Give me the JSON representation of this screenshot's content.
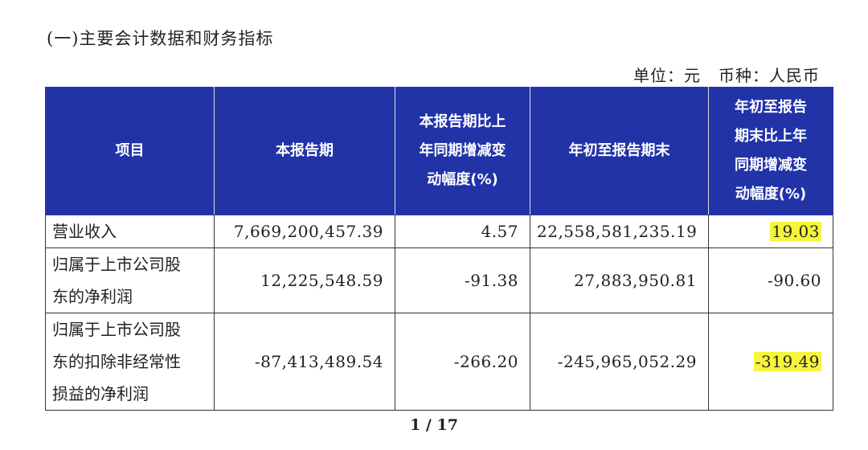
{
  "section_title": "(一)主要会计数据和财务指标",
  "unit_label": "单位：元",
  "currency_label": "币种：人民币",
  "table": {
    "header_bg": "#2233a8",
    "highlight_color": "#f5f53a",
    "headers": [
      [
        "项目"
      ],
      [
        "本报告期"
      ],
      [
        "本报告期比上",
        "年同期增减变",
        "动幅度(%)"
      ],
      [
        "年初至报告期末"
      ],
      [
        "年初至报告",
        "期末比上年",
        "同期增减变",
        "动幅度(%)"
      ]
    ],
    "rows": [
      {
        "item": [
          "营业收入"
        ],
        "current": "7,669,200,457.39",
        "current_change": "4.57",
        "ytd": "22,558,581,235.19",
        "ytd_change": "19.03",
        "ytd_change_highlighted": true
      },
      {
        "item": [
          "归属于上市公司股",
          "东的净利润"
        ],
        "current": "12,225,548.59",
        "current_change": "-91.38",
        "ytd": "27,883,950.81",
        "ytd_change": "-90.60",
        "ytd_change_highlighted": false
      },
      {
        "item": [
          "归属于上市公司股",
          "东的扣除非经常性",
          "损益的净利润"
        ],
        "current": "-87,413,489.54",
        "current_change": "-266.20",
        "ytd": "-245,965,052.29",
        "ytd_change": "-319.49",
        "ytd_change_highlighted": true
      }
    ]
  },
  "page_indicator": "1 / 17"
}
